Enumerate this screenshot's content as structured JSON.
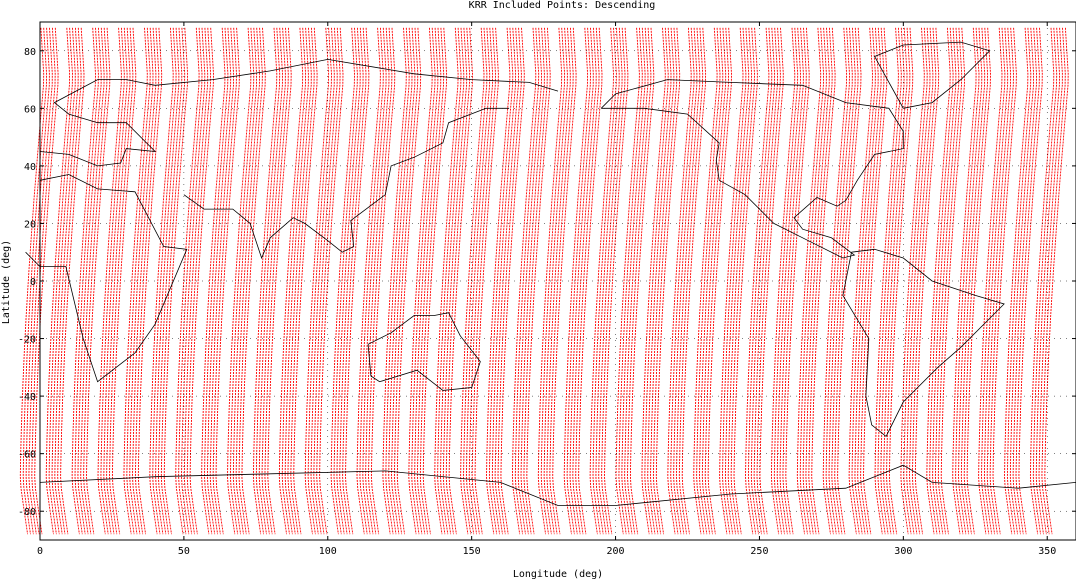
{
  "chart_data": {
    "type": "scatter",
    "title": "KRR Included Points:  Descending",
    "xlabel": "Longitude (deg)",
    "ylabel": "Latitude (deg)",
    "xlim": [
      0,
      360
    ],
    "ylim": [
      -90,
      90
    ],
    "x_ticks": [
      0,
      50,
      100,
      150,
      200,
      250,
      300,
      350
    ],
    "y_ticks": [
      -80,
      -60,
      -40,
      -20,
      0,
      20,
      40,
      60,
      80
    ],
    "grid": true,
    "series": [
      {
        "color": "#ff0000",
        "description": "descending swath ground tracks",
        "track_count": 40,
        "start_longitudes_at_north": [
          3,
          12,
          21,
          30,
          39,
          48,
          57,
          66,
          75,
          84,
          93,
          102,
          111,
          120,
          129,
          138,
          147,
          156,
          165,
          174,
          183,
          192,
          201,
          210,
          219,
          228,
          237,
          246,
          255,
          264,
          273,
          282,
          291,
          300,
          309,
          318,
          327,
          336,
          345,
          354
        ],
        "longitude_drift_deg": -10
      }
    ],
    "overlay": {
      "type": "coastlines",
      "color": "#000000"
    }
  }
}
